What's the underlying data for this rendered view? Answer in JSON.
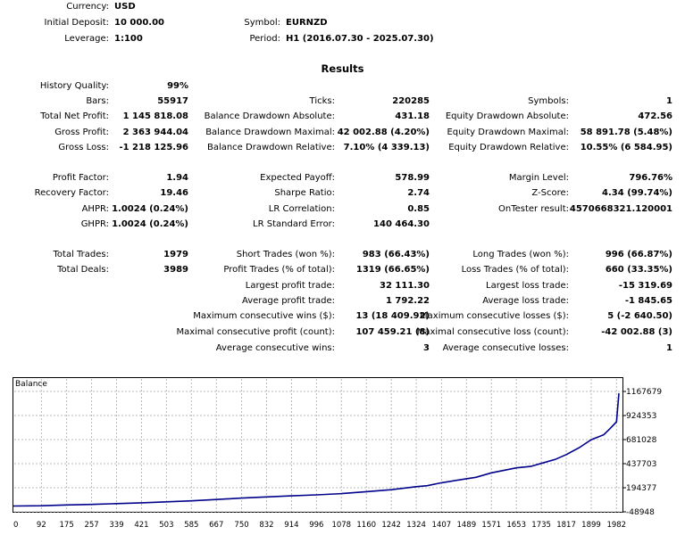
{
  "header": {
    "currency_label": "Currency:",
    "currency_value": "USD",
    "deposit_label": "Initial Deposit:",
    "deposit_value": "10 000.00",
    "leverage_label": "Leverage:",
    "leverage_value": "1:100",
    "symbol_label": "Symbol:",
    "symbol_value": "EURNZD",
    "period_label": "Period:",
    "period_value": "H1 (2016.07.30 - 2025.07.30)"
  },
  "results_title": "Results",
  "stats": {
    "history_quality": {
      "label": "History Quality:",
      "value": "99%"
    },
    "bars": {
      "label": "Bars:",
      "value": "55917"
    },
    "ticks": {
      "label": "Ticks:",
      "value": "220285"
    },
    "symbols": {
      "label": "Symbols:",
      "value": "1"
    },
    "total_net_profit": {
      "label": "Total Net Profit:",
      "value": "1 145 818.08"
    },
    "balance_dd_absolute": {
      "label": "Balance Drawdown Absolute:",
      "value": "431.18"
    },
    "equity_dd_absolute": {
      "label": "Equity Drawdown Absolute:",
      "value": "472.56"
    },
    "gross_profit": {
      "label": "Gross Profit:",
      "value": "2 363 944.04"
    },
    "balance_dd_maximal": {
      "label": "Balance Drawdown Maximal:",
      "value": "42 002.88 (4.20%)"
    },
    "equity_dd_maximal": {
      "label": "Equity Drawdown Maximal:",
      "value": "58 891.78 (5.48%)"
    },
    "gross_loss": {
      "label": "Gross Loss:",
      "value": "-1 218 125.96"
    },
    "balance_dd_relative": {
      "label": "Balance Drawdown Relative:",
      "value": "7.10% (4 339.13)"
    },
    "equity_dd_relative": {
      "label": "Equity Drawdown Relative:",
      "value": "10.55% (6 584.95)"
    },
    "profit_factor": {
      "label": "Profit Factor:",
      "value": "1.94"
    },
    "expected_payoff": {
      "label": "Expected Payoff:",
      "value": "578.99"
    },
    "margin_level": {
      "label": "Margin Level:",
      "value": "796.76%"
    },
    "recovery_factor": {
      "label": "Recovery Factor:",
      "value": "19.46"
    },
    "sharpe_ratio": {
      "label": "Sharpe Ratio:",
      "value": "2.74"
    },
    "z_score": {
      "label": "Z-Score:",
      "value": "4.34 (99.74%)"
    },
    "ahpr": {
      "label": "AHPR:",
      "value": "1.0024 (0.24%)"
    },
    "lr_correlation": {
      "label": "LR Correlation:",
      "value": "0.85"
    },
    "ontester_result": {
      "label": "OnTester result:",
      "value": "4570668321.120001"
    },
    "ghpr": {
      "label": "GHPR:",
      "value": "1.0024 (0.24%)"
    },
    "lr_standard_error": {
      "label": "LR Standard Error:",
      "value": "140 464.30"
    },
    "total_trades": {
      "label": "Total Trades:",
      "value": "1979"
    },
    "short_trades": {
      "label": "Short Trades (won %):",
      "value": "983 (66.43%)"
    },
    "long_trades": {
      "label": "Long Trades (won %):",
      "value": "996 (66.87%)"
    },
    "total_deals": {
      "label": "Total Deals:",
      "value": "3989"
    },
    "profit_trades": {
      "label": "Profit Trades (% of total):",
      "value": "1319 (66.65%)"
    },
    "loss_trades": {
      "label": "Loss Trades (% of total):",
      "value": "660 (33.35%)"
    },
    "largest_profit": {
      "label": "Largest profit trade:",
      "value": "32 111.30"
    },
    "largest_loss": {
      "label": "Largest loss trade:",
      "value": "-15 319.69"
    },
    "average_profit": {
      "label": "Average profit trade:",
      "value": "1 792.22"
    },
    "average_loss": {
      "label": "Average loss trade:",
      "value": "-1 845.65"
    },
    "max_consec_wins": {
      "label": "Maximum consecutive wins ($):",
      "value": "13 (18 409.92)"
    },
    "max_consec_losses": {
      "label": "Maximum consecutive losses ($):",
      "value": "5 (-2 640.50)"
    },
    "maximal_consec_profit": {
      "label": "Maximal consecutive profit (count):",
      "value": "107 459.21 (8)"
    },
    "maximal_consec_loss": {
      "label": "Maximal consecutive loss (count):",
      "value": "-42 002.88 (3)"
    },
    "avg_consec_wins": {
      "label": "Average consecutive wins:",
      "value": "3"
    },
    "avg_consec_losses": {
      "label": "Average consecutive losses:",
      "value": "1"
    }
  },
  "chart_data": {
    "type": "line",
    "title": "Balance",
    "series": [
      {
        "name": "Balance",
        "color": "#00008b",
        "x": [
          0,
          92,
          175,
          257,
          339,
          421,
          503,
          585,
          667,
          750,
          832,
          914,
          996,
          1078,
          1160,
          1242,
          1324,
          1360,
          1407,
          1489,
          1520,
          1571,
          1653,
          1700,
          1735,
          1780,
          1817,
          1860,
          1899,
          1940,
          1960,
          1982,
          1990
        ],
        "y": [
          10000,
          12000,
          20000,
          26000,
          34000,
          42000,
          52000,
          62000,
          75000,
          90000,
          102000,
          112000,
          122000,
          135000,
          155000,
          175000,
          205000,
          215000,
          245000,
          285000,
          300000,
          345000,
          395000,
          410000,
          440000,
          480000,
          530000,
          600000,
          680000,
          730000,
          790000,
          860000,
          1150000
        ]
      }
    ],
    "xticks": [
      "0",
      "92",
      "175",
      "257",
      "339",
      "421",
      "503",
      "585",
      "667",
      "750",
      "832",
      "914",
      "996",
      "1078",
      "1160",
      "1242",
      "1324",
      "1407",
      "1489",
      "1571",
      "1653",
      "1735",
      "1817",
      "1899",
      "1982"
    ],
    "yticks": [
      "1167679",
      "924353",
      "681028",
      "437703",
      "194377",
      "-48948"
    ],
    "xlim": [
      0,
      1990
    ],
    "ylim": [
      -48948,
      1167679
    ],
    "grid": true
  }
}
